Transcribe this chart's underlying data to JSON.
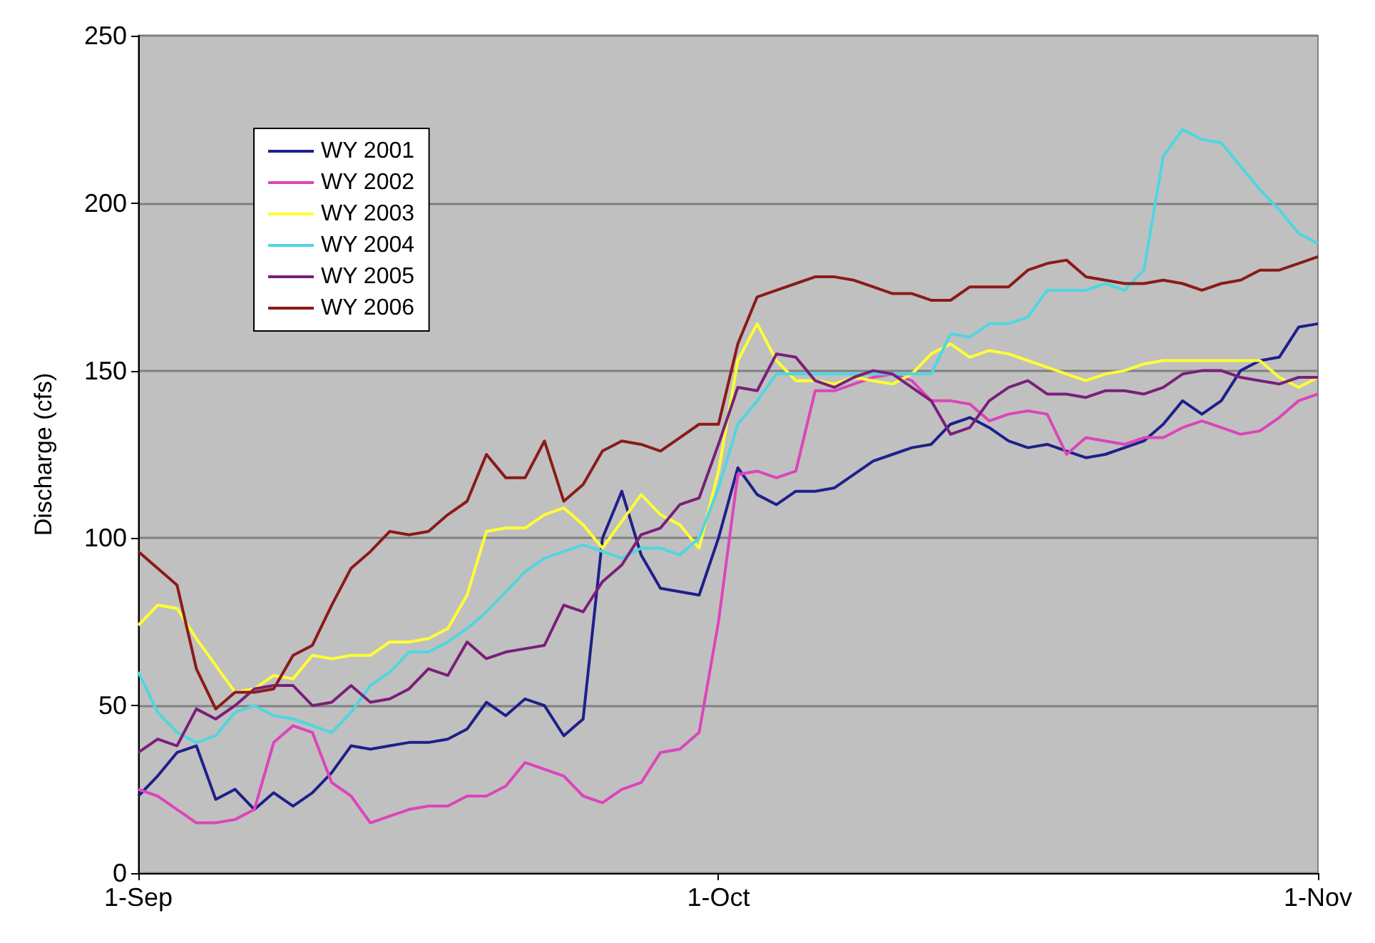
{
  "chart_data": {
    "type": "line",
    "ylabel": "Discharge (cfs)",
    "x": [
      "--09-01",
      "--09-02",
      "--09-03",
      "--09-04",
      "--09-05",
      "--09-06",
      "--09-07",
      "--09-08",
      "--09-09",
      "--09-10",
      "--09-11",
      "--09-12",
      "--09-13",
      "--09-14",
      "--09-15",
      "--09-16",
      "--09-17",
      "--09-18",
      "--09-19",
      "--09-20",
      "--09-21",
      "--09-22",
      "--09-23",
      "--09-24",
      "--09-25",
      "--09-26",
      "--09-27",
      "--09-28",
      "--09-29",
      "--09-30",
      "--10-01",
      "--10-02",
      "--10-03",
      "--10-04",
      "--10-05",
      "--10-06",
      "--10-07",
      "--10-08",
      "--10-09",
      "--10-10",
      "--10-11",
      "--10-12",
      "--10-13",
      "--10-14",
      "--10-15",
      "--10-16",
      "--10-17",
      "--10-18",
      "--10-19",
      "--10-20",
      "--10-21",
      "--10-22",
      "--10-23",
      "--10-24",
      "--10-25",
      "--10-26",
      "--10-27",
      "--10-28",
      "--10-29",
      "--10-30",
      "--10-31",
      "--11-01"
    ],
    "series": [
      {
        "name": "WY 2001",
        "color": "#1f1f8c",
        "values": [
          23,
          29,
          36,
          38,
          22,
          25,
          19,
          24,
          20,
          24,
          30,
          38,
          37,
          38,
          39,
          39,
          40,
          43,
          51,
          47,
          52,
          50,
          41,
          46,
          100,
          114,
          95,
          85,
          84,
          83,
          100,
          121,
          113,
          110,
          114,
          114,
          115,
          119,
          123,
          125,
          127,
          128,
          134,
          136,
          133,
          129,
          127,
          128,
          126,
          124,
          125,
          127,
          129,
          134,
          141,
          137,
          141,
          150,
          153,
          154,
          163,
          164
        ]
      },
      {
        "name": "WY 2002",
        "color": "#dd44bb",
        "values": [
          25,
          23,
          19,
          15,
          15,
          16,
          19,
          39,
          44,
          42,
          27,
          23,
          15,
          17,
          19,
          20,
          20,
          23,
          23,
          26,
          33,
          31,
          29,
          23,
          21,
          25,
          27,
          36,
          37,
          42,
          75,
          119,
          120,
          118,
          120,
          144,
          144,
          146,
          148,
          149,
          147,
          141,
          141,
          140,
          135,
          137,
          138,
          137,
          125,
          130,
          129,
          128,
          130,
          130,
          133,
          135,
          133,
          131,
          132,
          136,
          141,
          143
        ]
      },
      {
        "name": "WY 2003",
        "color": "#ffff33",
        "values": [
          74,
          80,
          79,
          70,
          62,
          54,
          55,
          59,
          58,
          65,
          64,
          65,
          65,
          69,
          69,
          70,
          73,
          83,
          102,
          103,
          103,
          107,
          109,
          104,
          97,
          105,
          113,
          107,
          104,
          97,
          120,
          153,
          164,
          153,
          147,
          147,
          146,
          148,
          147,
          146,
          149,
          155,
          158,
          154,
          156,
          155,
          153,
          151,
          149,
          147,
          149,
          150,
          152,
          153,
          153,
          153,
          153,
          153,
          153,
          148,
          145,
          148
        ]
      },
      {
        "name": "WY 2004",
        "color": "#4fd6e0",
        "values": [
          60,
          48,
          42,
          39,
          41,
          48,
          50,
          47,
          46,
          44,
          42,
          48,
          56,
          60,
          66,
          66,
          69,
          73,
          78,
          84,
          90,
          94,
          96,
          98,
          96,
          94,
          97,
          97,
          95,
          100,
          115,
          134,
          141,
          149,
          149,
          149,
          149,
          149,
          149,
          149,
          149,
          149,
          161,
          160,
          164,
          164,
          166,
          174,
          174,
          174,
          176,
          174,
          180,
          214,
          222,
          219,
          218,
          211,
          204,
          198,
          191,
          188
        ]
      },
      {
        "name": "WY 2005",
        "color": "#7a1f7a",
        "values": [
          36,
          40,
          38,
          49,
          46,
          50,
          55,
          56,
          56,
          50,
          51,
          56,
          51,
          52,
          55,
          61,
          59,
          69,
          64,
          66,
          67,
          68,
          80,
          78,
          87,
          92,
          101,
          103,
          110,
          112,
          128,
          145,
          144,
          155,
          154,
          147,
          145,
          148,
          150,
          149,
          145,
          141,
          131,
          133,
          141,
          145,
          147,
          143,
          143,
          142,
          144,
          144,
          143,
          145,
          149,
          150,
          150,
          148,
          147,
          146,
          148,
          148
        ]
      },
      {
        "name": "WY 2006",
        "color": "#8b1a1a",
        "values": [
          96,
          91,
          86,
          61,
          49,
          54,
          54,
          55,
          65,
          68,
          80,
          91,
          96,
          102,
          101,
          102,
          107,
          111,
          125,
          118,
          118,
          129,
          111,
          116,
          126,
          129,
          128,
          126,
          130,
          134,
          134,
          158,
          172,
          174,
          176,
          178,
          178,
          177,
          175,
          173,
          173,
          171,
          171,
          175,
          175,
          175,
          180,
          182,
          183,
          178,
          177,
          176,
          176,
          177,
          176,
          174,
          176,
          177,
          180,
          180,
          182,
          184
        ]
      }
    ],
    "xlim": [
      "--09-01",
      "--11-01"
    ],
    "xticks": [
      {
        "value": "--09-01",
        "label": "1-Sep"
      },
      {
        "value": "--10-01",
        "label": "1-Oct"
      },
      {
        "value": "--11-01",
        "label": "1-Nov"
      }
    ],
    "ylim": [
      0,
      250
    ],
    "yticks": [
      0,
      50,
      100,
      150,
      200,
      250
    ],
    "grid": "y",
    "legend": "top left",
    "marker": "none",
    "line_style": "solid"
  }
}
